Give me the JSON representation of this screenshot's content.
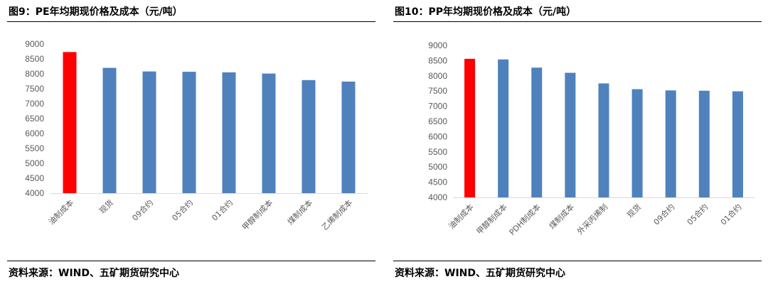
{
  "left": {
    "title": "图9：PE年均期现价格及成本（元/吨）",
    "source": "资料来源：WIND、五矿期货研究中心"
  },
  "right": {
    "title": "图10：PP年均期现价格及成本（元/吨）",
    "source": "资料来源：WIND、五矿期货研究中心"
  },
  "colors": {
    "highlight": "#ff0000",
    "bar": "#4f81bd",
    "axis": "#d9d9d9",
    "text": "#595959"
  },
  "chart_data": [
    {
      "type": "bar",
      "categories": [
        "油制成本",
        "现货",
        "09合约",
        "05合约",
        "01合约",
        "甲醇制成本",
        "煤制成本",
        "乙烯制成本"
      ],
      "values": [
        8730,
        8200,
        8080,
        8070,
        8050,
        8010,
        7790,
        7740
      ],
      "ylim": [
        4000,
        9000
      ],
      "yticks": [
        4000,
        4500,
        5000,
        5500,
        6000,
        6500,
        7000,
        7500,
        8000,
        8500,
        9000
      ],
      "highlight_index": 0,
      "grid": false,
      "legend": "none"
    },
    {
      "type": "bar",
      "categories": [
        "油制成本",
        "甲醇制成本",
        "PDH制成本",
        "煤制成本",
        "外采丙烯制",
        "现货",
        "09合约",
        "05合约",
        "01合约"
      ],
      "values": [
        8560,
        8540,
        8270,
        8100,
        7750,
        7560,
        7520,
        7510,
        7490
      ],
      "ylim": [
        4000,
        9000
      ],
      "yticks": [
        4000,
        4500,
        5000,
        5500,
        6000,
        6500,
        7000,
        7500,
        8000,
        8500,
        9000
      ],
      "highlight_index": 0,
      "grid": false,
      "legend": "none"
    }
  ]
}
